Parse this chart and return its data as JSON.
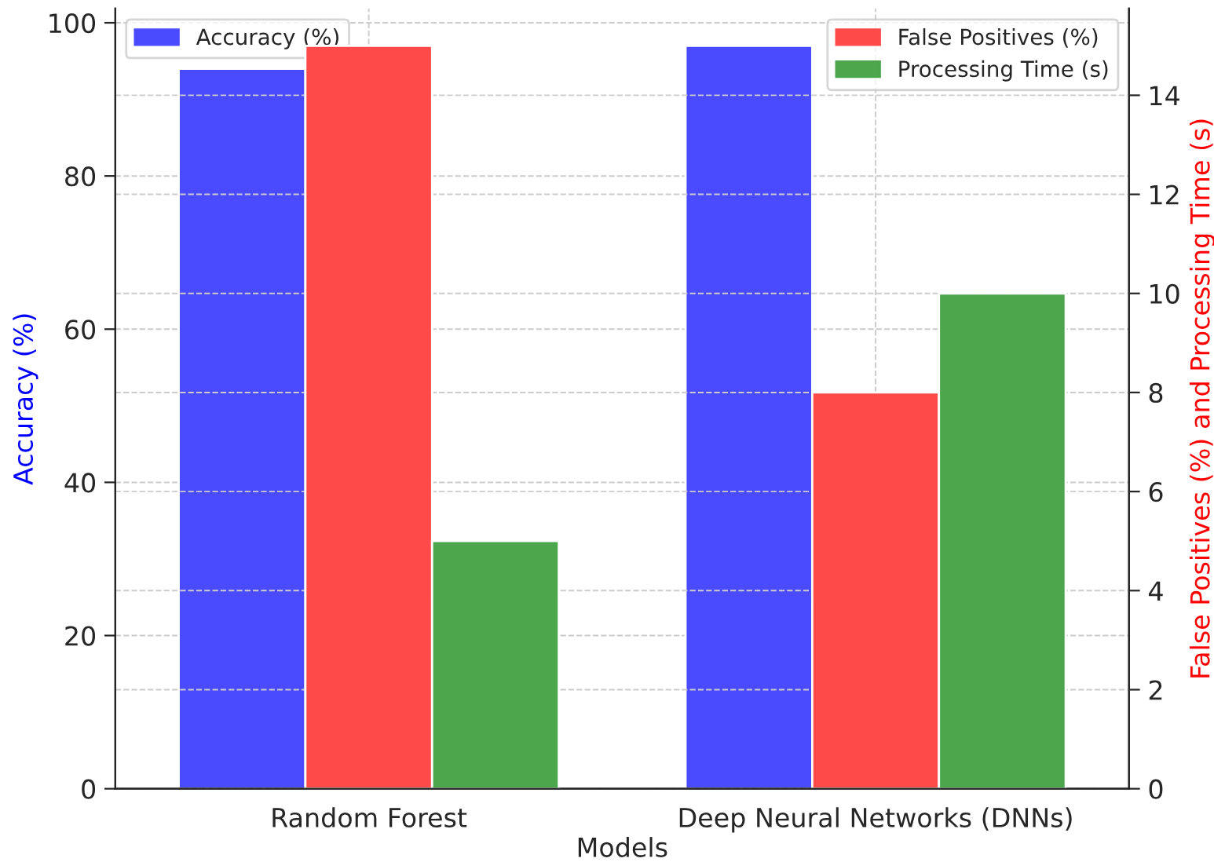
{
  "chart_data": {
    "type": "bar",
    "xlabel": "Models",
    "ylabel": "Accuracy (%)",
    "y2label": "False Positives (%) and Processing Time (s)",
    "categories": [
      "Random Forest",
      "Deep Neural Networks (DNNs)"
    ],
    "series": [
      {
        "name": "Accuracy (%)",
        "color": "#4a4aff",
        "values": [
          94,
          97
        ]
      },
      {
        "name": "False Positives (%)",
        "color": "#ff4a4a",
        "values": [
          15,
          8
        ],
        "axis": "y2"
      },
      {
        "name": "Processing Time (s)",
        "color": "#4ca64c",
        "values": [
          5,
          10
        ],
        "axis": "y2"
      }
    ],
    "ylim": [
      0,
      101.85
    ],
    "yticks": [
      0,
      20,
      40,
      60,
      80,
      100
    ],
    "y2lim": [
      0,
      15.75
    ],
    "y2ticks": [
      0,
      2,
      4,
      6,
      8,
      10,
      12,
      14
    ],
    "grid": true,
    "legend": "top"
  }
}
